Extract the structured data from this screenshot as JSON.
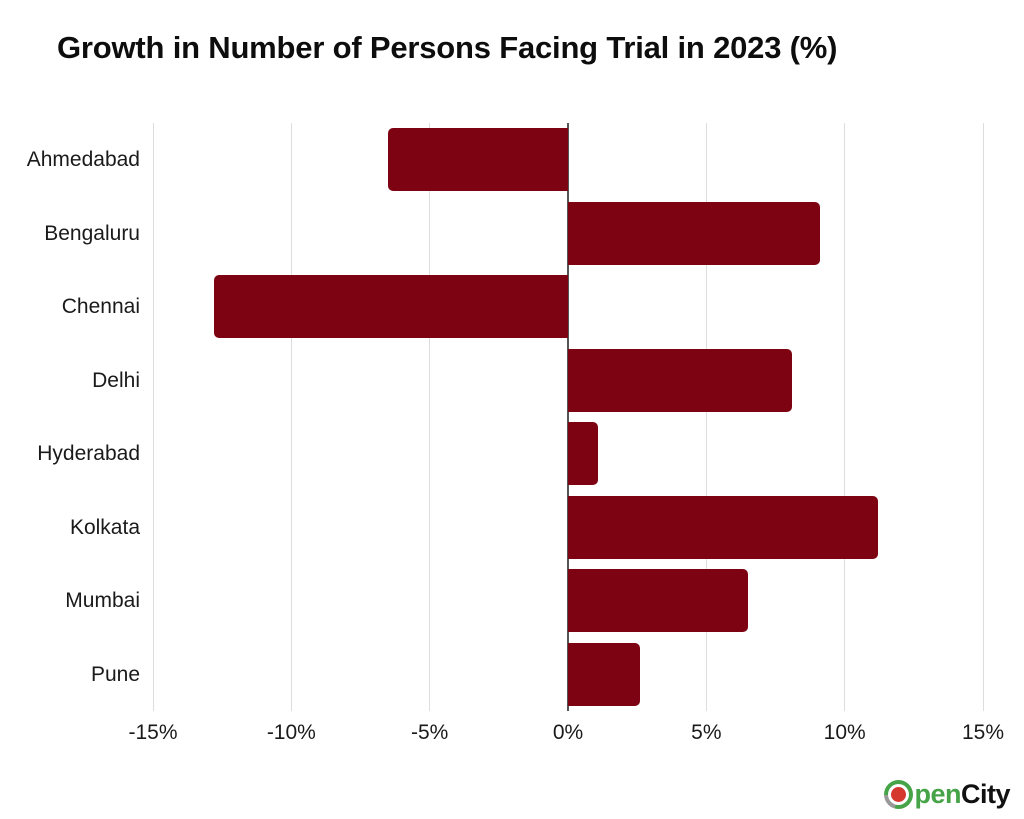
{
  "page": {
    "title": "Growth in Number of Persons Facing Trial in 2023 (%)"
  },
  "chart_data": {
    "type": "bar",
    "orientation": "horizontal",
    "title": "Growth in Number of Persons Facing Trial in 2023 (%)",
    "categories": [
      "Ahmedabad",
      "Bengaluru",
      "Chennai",
      "Delhi",
      "Hyderabad",
      "Kolkata",
      "Mumbai",
      "Pune"
    ],
    "values": [
      -6.5,
      9.1,
      -12.8,
      8.1,
      1.1,
      11.2,
      6.5,
      2.6
    ],
    "unit": "%",
    "xlabel": "",
    "ylabel": "",
    "xlim": [
      -15,
      15
    ],
    "xticks": [
      {
        "value": -15,
        "label": "-15%"
      },
      {
        "value": -10,
        "label": "-10%"
      },
      {
        "value": -5,
        "label": "-5%"
      },
      {
        "value": 0,
        "label": "0%"
      },
      {
        "value": 5,
        "label": "5%"
      },
      {
        "value": 10,
        "label": "10%"
      },
      {
        "value": 15,
        "label": "15%"
      }
    ],
    "grid": "vertical-gridlines-on",
    "legend": "none",
    "bar_color": "#7D0313"
  },
  "colors": {
    "bar": "#7D0313",
    "gridline": "#DDDDDD",
    "zero_line": "#555555",
    "text": "#1A1A1A",
    "title": "#0D0D0D",
    "logo_green": "#46A347",
    "logo_red": "#D5382F",
    "logo_gray": "#999999",
    "logo_city": "#111111"
  },
  "logo": {
    "icon": "opencity-o-icon",
    "open_text": "pen",
    "city_text": "City"
  }
}
